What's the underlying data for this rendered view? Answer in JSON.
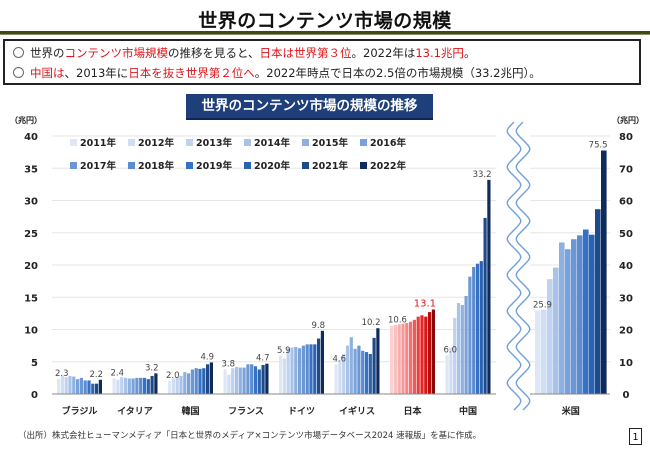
{
  "page": {
    "title": "世界のコンテンツ市場の規模",
    "summary": [
      [
        {
          "text": "世界の",
          "red": false
        },
        {
          "text": "コンテンツ市場規模",
          "red": true
        },
        {
          "text": "の推移を見ると、",
          "red": false
        },
        {
          "text": "日本は世界第３位",
          "red": true
        },
        {
          "text": "。2022年は",
          "red": false
        },
        {
          "text": "13.1兆円",
          "red": true
        },
        {
          "text": "。",
          "red": false
        }
      ],
      [
        {
          "text": "中国は",
          "red": true
        },
        {
          "text": "、2013年に",
          "red": false
        },
        {
          "text": "日本を抜き世界第２位へ",
          "red": true
        },
        {
          "text": "。2022年時点で日本の2.5倍の市場規模（33.2兆円）。",
          "red": false
        }
      ]
    ],
    "source": "（出所）株式会社ヒューマンメディア「日本と世界のメディア×コンテンツ市場データベース2024 速報版」を基に作成。",
    "page_number": "1"
  },
  "chart_data": {
    "type": "bar",
    "title": "世界のコンテンツ市場の規模の推移",
    "ylabel_left": "（兆円）",
    "ylabel_right": "（兆円）",
    "ylim_left": [
      0,
      40
    ],
    "yticks_left": [
      0,
      5,
      10,
      15,
      20,
      25,
      30,
      35,
      40
    ],
    "ylim_right": [
      0,
      80
    ],
    "yticks_right": [
      0,
      10,
      20,
      30,
      40,
      50,
      60,
      70,
      80
    ],
    "grid": true,
    "legend_position": "top-left",
    "axis_break_between": [
      "中国",
      "米国"
    ],
    "series_years": [
      "2011年",
      "2012年",
      "2013年",
      "2014年",
      "2015年",
      "2016年",
      "2017年",
      "2018年",
      "2019年",
      "2020年",
      "2021年",
      "2022年"
    ],
    "series_colors": [
      "#dde7f6",
      "#d0def3",
      "#bfd2ee",
      "#a9c3e8",
      "#8fb1e1",
      "#7aa2da",
      "#6b97d5",
      "#5c8ccf",
      "#3572c4",
      "#2b63b0",
      "#1e4a8a",
      "#0f2b5c"
    ],
    "highlight_colors_japan": [
      "#fbd0d0",
      "#f9c0c0",
      "#f7adad",
      "#f59a9a",
      "#f38888",
      "#f07272",
      "#ec5b5b",
      "#e63f3f",
      "#e32626",
      "#d91414",
      "#b80d0d",
      "#8a0a0a"
    ],
    "categories": [
      {
        "name": "ブラジル",
        "axis": "left",
        "values": [
          2.3,
          2.8,
          2.6,
          2.8,
          2.7,
          2.3,
          2.5,
          2.1,
          2.1,
          1.6,
          1.6,
          2.2
        ],
        "labels": {
          "first": "2.3",
          "last": "2.2"
        }
      },
      {
        "name": "イタリア",
        "axis": "left",
        "values": [
          2.4,
          2.2,
          2.6,
          2.5,
          2.4,
          2.4,
          2.5,
          2.5,
          2.5,
          2.3,
          2.8,
          3.2
        ],
        "labels": {
          "first": "2.4",
          "last": "3.2"
        }
      },
      {
        "name": "韓国",
        "axis": "left",
        "values": [
          2.0,
          2.4,
          2.6,
          2.8,
          3.4,
          3.2,
          3.8,
          4.0,
          3.9,
          4.0,
          4.6,
          4.9
        ],
        "labels": {
          "first": "2.0",
          "last": "4.9"
        }
      },
      {
        "name": "フランス",
        "axis": "left",
        "values": [
          3.8,
          3.0,
          4.0,
          4.2,
          4.1,
          4.1,
          4.6,
          4.6,
          4.3,
          3.8,
          4.5,
          4.7
        ],
        "labels": {
          "first": "3.8",
          "last": "4.7"
        }
      },
      {
        "name": "ドイツ",
        "axis": "left",
        "values": [
          5.9,
          5.5,
          7.1,
          7.2,
          7.3,
          7.1,
          7.5,
          7.7,
          7.7,
          7.7,
          8.6,
          9.8
        ],
        "labels": {
          "first": "5.9",
          "last": "9.8"
        }
      },
      {
        "name": "イギリス",
        "axis": "left",
        "values": [
          4.6,
          5.2,
          6.2,
          7.5,
          8.8,
          7.0,
          7.5,
          6.7,
          6.5,
          6.2,
          8.7,
          10.2
        ],
        "labels": {
          "first": "4.6",
          "last": "10.2"
        }
      },
      {
        "name": "日本",
        "axis": "left",
        "highlight": true,
        "values": [
          10.6,
          10.7,
          10.8,
          10.9,
          11.0,
          11.2,
          11.5,
          12.0,
          12.2,
          12.0,
          12.7,
          13.1
        ],
        "labels": {
          "first": "10.6",
          "last": "13.1"
        }
      },
      {
        "name": "中国",
        "axis": "left",
        "values": [
          6.0,
          7.2,
          11.8,
          14.1,
          13.8,
          15.2,
          18.2,
          19.7,
          20.2,
          20.6,
          27.3,
          33.2
        ],
        "labels": {
          "first": "6.0",
          "last": "33.2"
        }
      },
      {
        "name": "米国",
        "axis": "right",
        "values": [
          25.9,
          26.1,
          35.6,
          39.2,
          47.0,
          44.9,
          48.0,
          49.2,
          51.0,
          49.4,
          57.3,
          75.5
        ],
        "labels": {
          "first": "25.9",
          "last": "75.5"
        }
      }
    ]
  }
}
